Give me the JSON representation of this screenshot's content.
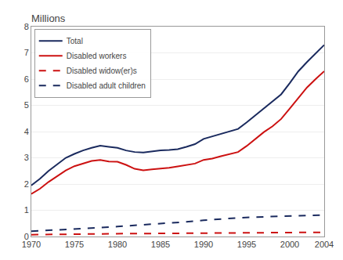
{
  "chart_data": {
    "type": "line",
    "title": "Millions",
    "xlim": [
      1970,
      2004
    ],
    "ylim": [
      0,
      8
    ],
    "xticks": [
      1970,
      1975,
      1980,
      1985,
      1990,
      1995,
      2000,
      2004
    ],
    "yticks": [
      0,
      1,
      2,
      3,
      4,
      5,
      6,
      7,
      8
    ],
    "grid": "y",
    "legend": "upper left",
    "series": [
      {
        "name": "Total",
        "color": "#1a2a5e",
        "line_style": "solid",
        "x": [
          1970,
          1971,
          1972,
          1973,
          1974,
          1975,
          1976,
          1977,
          1978,
          1979,
          1980,
          1981,
          1982,
          1983,
          1984,
          1985,
          1986,
          1987,
          1988,
          1989,
          1990,
          1991,
          1992,
          1993,
          1994,
          1995,
          1996,
          1997,
          1998,
          1999,
          2000,
          2001,
          2002,
          2003,
          2004
        ],
        "values": [
          1.95,
          2.2,
          2.5,
          2.75,
          3.0,
          3.15,
          3.28,
          3.38,
          3.46,
          3.42,
          3.38,
          3.28,
          3.22,
          3.2,
          3.25,
          3.28,
          3.3,
          3.33,
          3.42,
          3.52,
          3.72,
          3.82,
          3.92,
          4.0,
          4.1,
          4.35,
          4.62,
          4.9,
          5.15,
          5.42,
          5.85,
          6.3,
          6.65,
          6.98,
          7.3
        ]
      },
      {
        "name": "Disabled workers",
        "color": "#cc1111",
        "line_style": "solid",
        "x": [
          1970,
          1971,
          1972,
          1973,
          1974,
          1975,
          1976,
          1977,
          1978,
          1979,
          1980,
          1981,
          1982,
          1983,
          1984,
          1985,
          1986,
          1987,
          1988,
          1989,
          1990,
          1991,
          1992,
          1993,
          1994,
          1995,
          1996,
          1997,
          1998,
          1999,
          2000,
          2001,
          2002,
          2003,
          2004
        ],
        "values": [
          1.62,
          1.82,
          2.08,
          2.3,
          2.52,
          2.68,
          2.78,
          2.88,
          2.92,
          2.86,
          2.85,
          2.73,
          2.58,
          2.52,
          2.56,
          2.58,
          2.62,
          2.67,
          2.73,
          2.78,
          2.92,
          2.97,
          3.06,
          3.14,
          3.22,
          3.45,
          3.72,
          3.98,
          4.2,
          4.48,
          4.88,
          5.28,
          5.68,
          6.0,
          6.3
        ]
      },
      {
        "name": "Disabled widow(er)s",
        "color": "#cc1111",
        "line_style": "dashed",
        "x": [
          1970,
          1972,
          1974,
          1976,
          1978,
          1980,
          1982,
          1984,
          1986,
          1988,
          1990,
          1992,
          1994,
          1996,
          1998,
          2000,
          2002,
          2004
        ],
        "values": [
          0.07,
          0.08,
          0.09,
          0.1,
          0.11,
          0.115,
          0.115,
          0.115,
          0.12,
          0.12,
          0.125,
          0.13,
          0.13,
          0.14,
          0.145,
          0.15,
          0.155,
          0.16
        ]
      },
      {
        "name": "Disabled adult children",
        "color": "#1a2a5e",
        "line_style": "dashed",
        "x": [
          1970,
          1972,
          1974,
          1976,
          1978,
          1980,
          1982,
          1984,
          1986,
          1988,
          1990,
          1992,
          1994,
          1996,
          1998,
          2000,
          2002,
          2004
        ],
        "values": [
          0.2,
          0.23,
          0.26,
          0.3,
          0.34,
          0.38,
          0.42,
          0.46,
          0.5,
          0.56,
          0.62,
          0.67,
          0.71,
          0.74,
          0.76,
          0.78,
          0.8,
          0.82
        ]
      }
    ]
  }
}
